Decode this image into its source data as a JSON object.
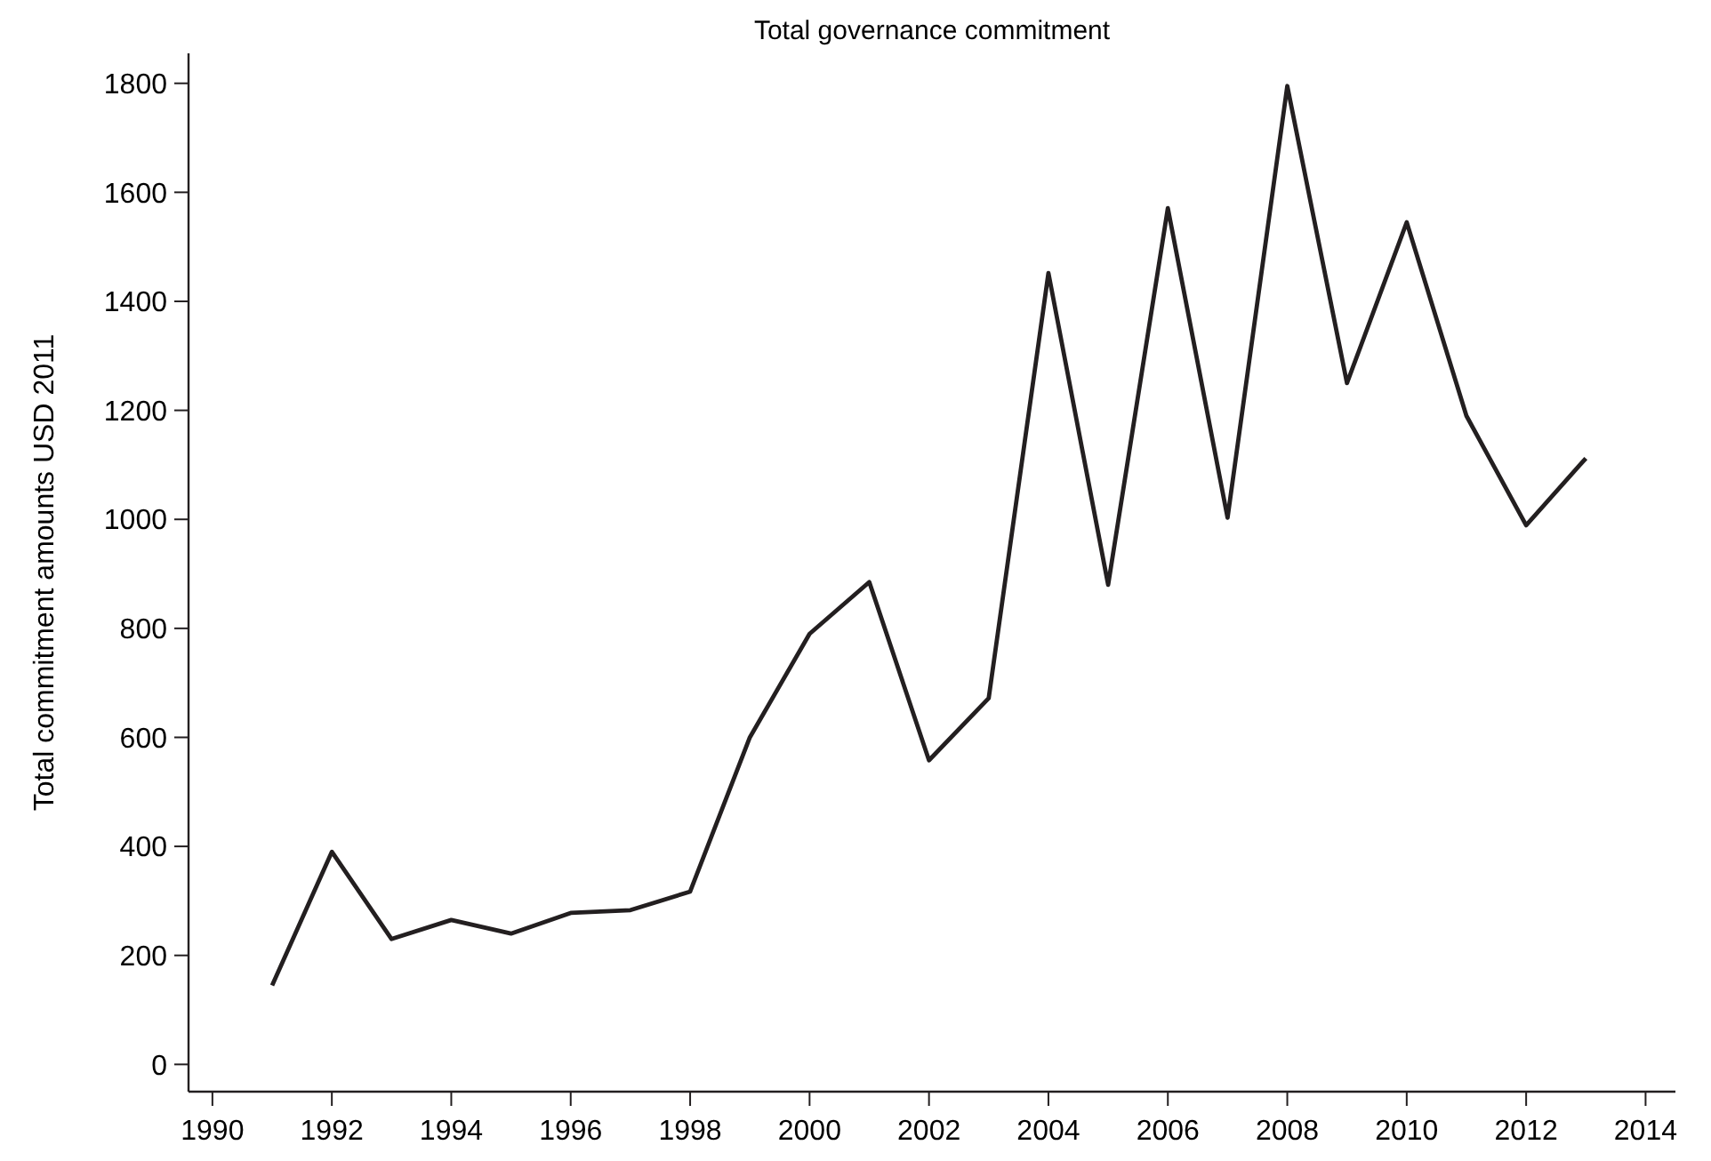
{
  "chart_data": {
    "type": "line",
    "title": "Total governance commitment",
    "ylabel": "Total commitment amounts USD 2011",
    "x": [
      1991,
      1992,
      1993,
      1994,
      1995,
      1996,
      1997,
      1998,
      1999,
      2000,
      2001,
      2002,
      2003,
      2004,
      2005,
      2006,
      2007,
      2008,
      2009,
      2010,
      2011,
      2012,
      2013
    ],
    "series": [
      {
        "color": "#231f20",
        "values": [
          145,
          390,
          230,
          265,
          240,
          278,
          283,
          317,
          600,
          790,
          885,
          558,
          672,
          1452,
          880,
          1571,
          1003,
          1795,
          1250,
          1545,
          1190,
          989,
          1112
        ]
      }
    ],
    "xlim": [
      1989.6,
      2014.5
    ],
    "xticks": [
      1990,
      1992,
      1994,
      1996,
      1998,
      2000,
      2002,
      2004,
      2006,
      2008,
      2010,
      2012,
      2014
    ],
    "ylim": [
      -50,
      1855
    ],
    "yticks": [
      0,
      200,
      400,
      600,
      800,
      1000,
      1200,
      1400,
      1600,
      1800
    ],
    "grid": false,
    "marker": "none",
    "line_style": "solid"
  }
}
